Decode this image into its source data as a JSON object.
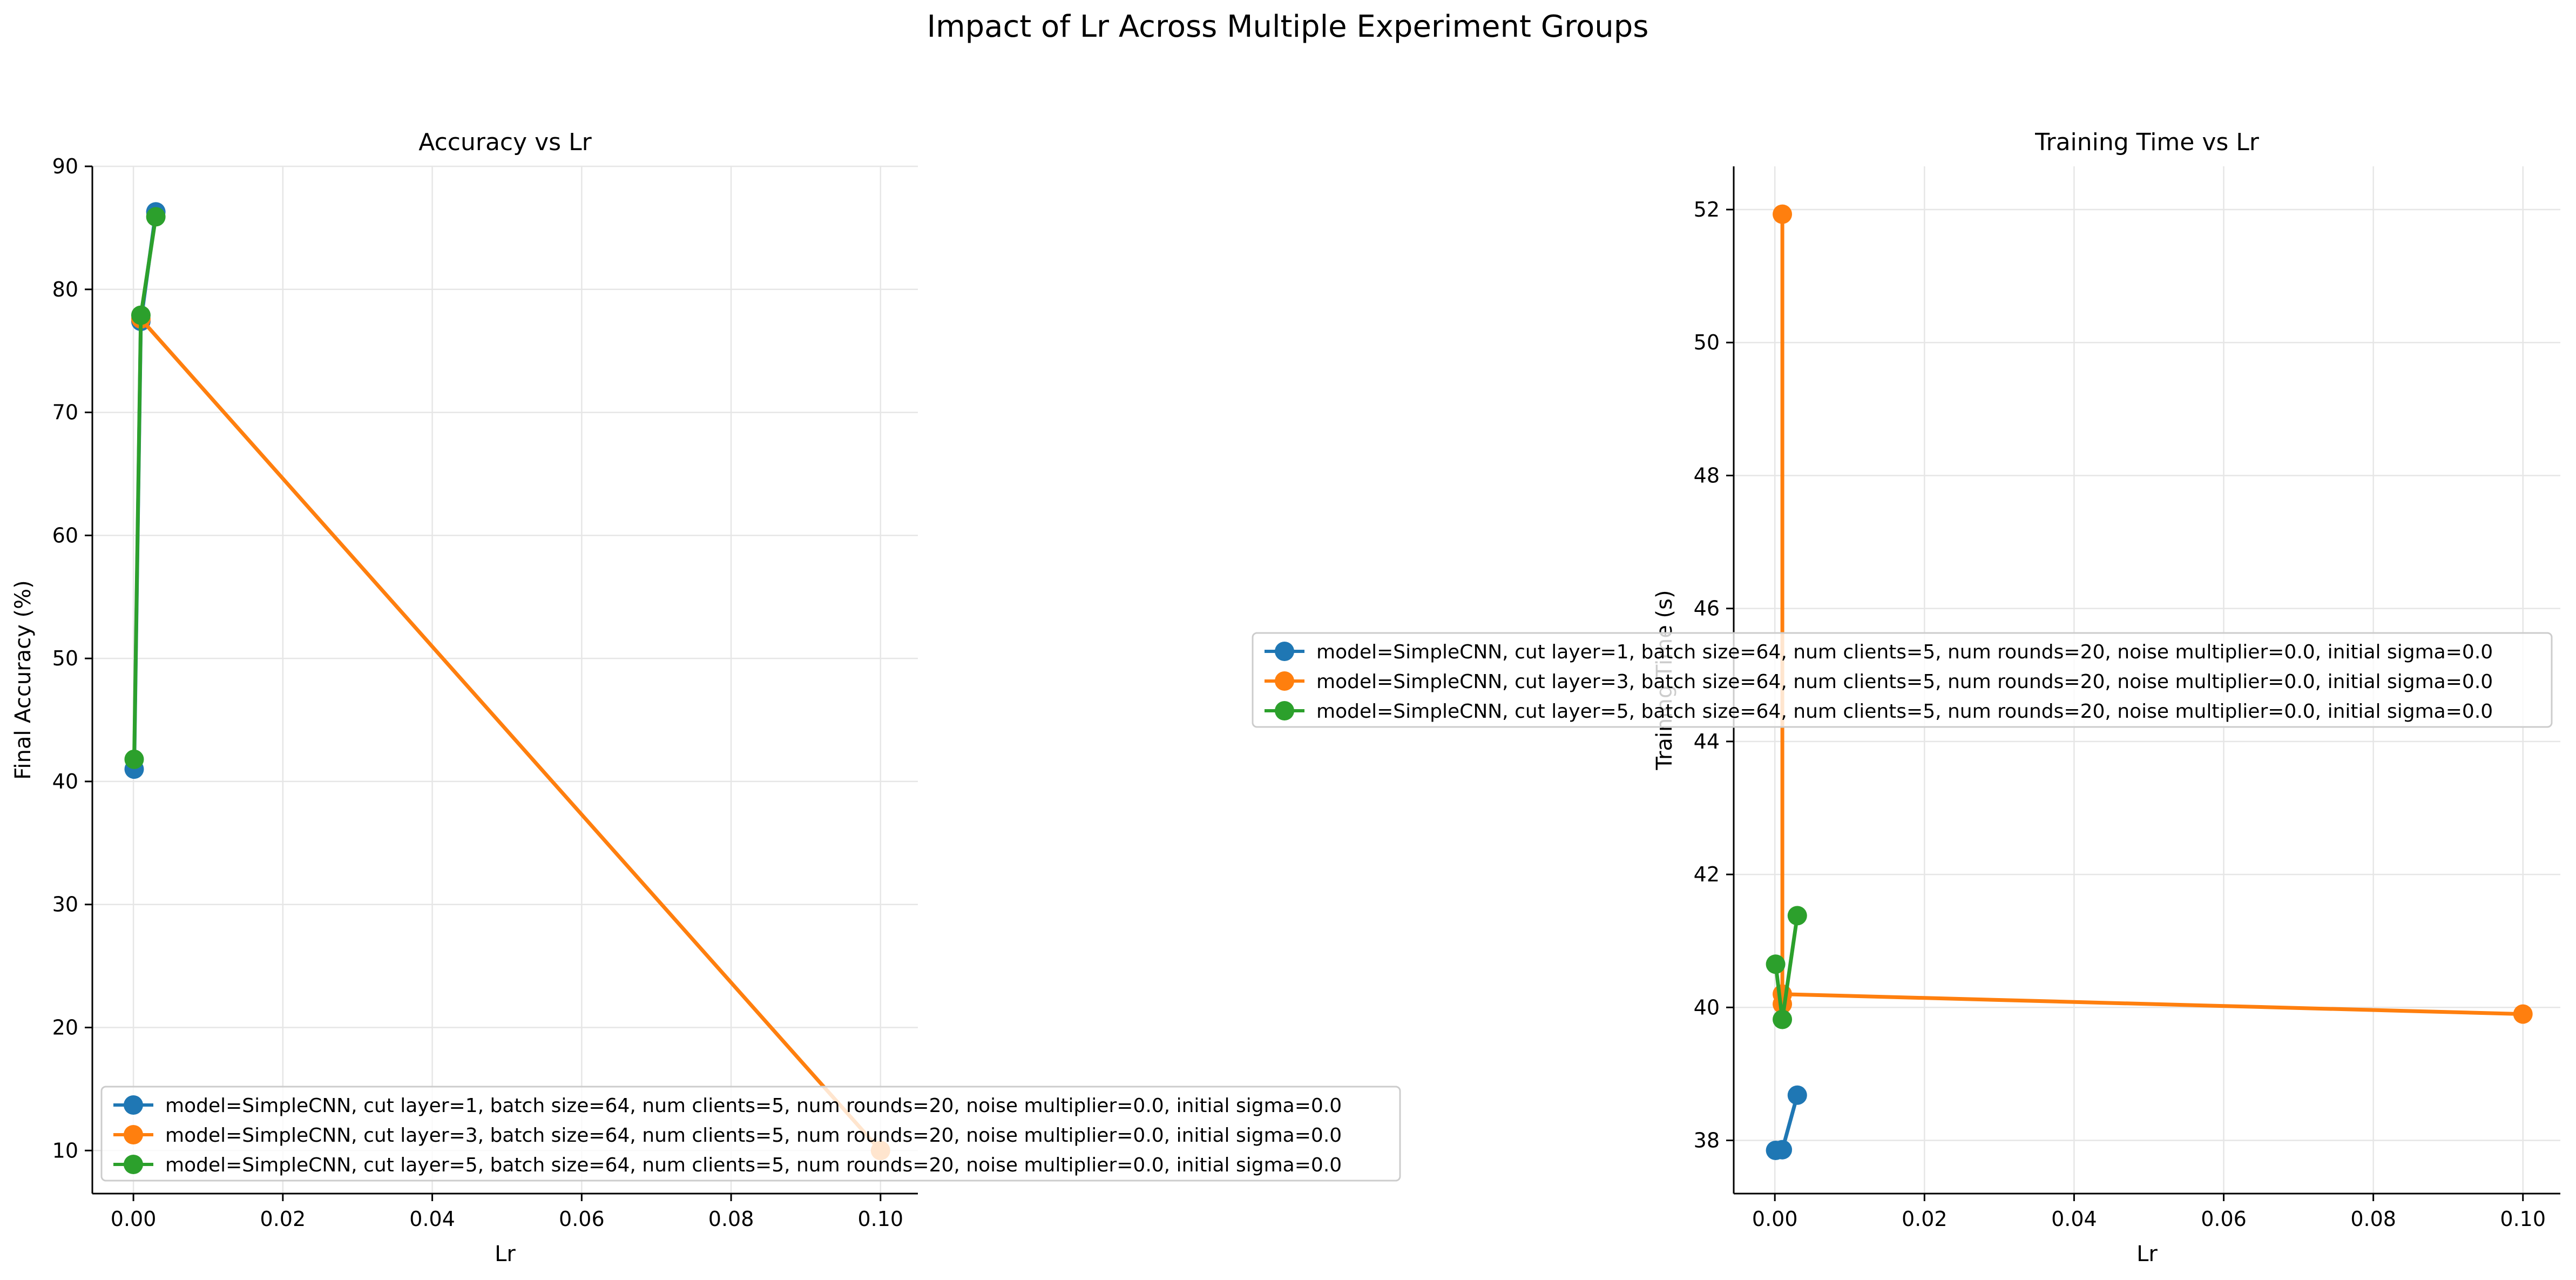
{
  "figure": {
    "suptitle": "Impact of Lr Across Multiple Experiment Groups"
  },
  "colors": {
    "series": [
      "#1f77b4",
      "#ff7f0e",
      "#2ca02c"
    ],
    "grid": "#e6e6e6"
  },
  "legend_entries": [
    "model=SimpleCNN, cut layer=1, batch size=64, num clients=5, num rounds=20, noise multiplier=0.0, initial sigma=0.0",
    "model=SimpleCNN, cut layer=3, batch size=64, num clients=5, num rounds=20, noise multiplier=0.0, initial sigma=0.0",
    "model=SimpleCNN, cut layer=5, batch size=64, num clients=5, num rounds=20, noise multiplier=0.0, initial sigma=0.0"
  ],
  "chart_data": [
    {
      "type": "line",
      "title": "Accuracy vs Lr",
      "xlabel": "Lr",
      "ylabel": "Final Accuracy (%)",
      "xlim": [
        -0.0055,
        0.105
      ],
      "ylim": [
        6.5,
        90
      ],
      "xticks": [
        "0.00",
        "0.02",
        "0.04",
        "0.06",
        "0.08",
        "0.10"
      ],
      "yticks": [
        "10",
        "20",
        "30",
        "40",
        "50",
        "60",
        "70",
        "80",
        "90"
      ],
      "grid": true,
      "legend_position": "lower-left",
      "series": [
        {
          "name": "model=SimpleCNN, cut layer=1, batch size=64, num clients=5, num rounds=20, noise multiplier=0.0, initial sigma=0.0",
          "x": [
            0.0001,
            0.001,
            0.003
          ],
          "y": [
            41.0,
            77.4,
            86.3
          ]
        },
        {
          "name": "model=SimpleCNN, cut layer=3, batch size=64, num clients=5, num rounds=20, noise multiplier=0.0, initial sigma=0.0",
          "x": [
            0.001,
            0.1
          ],
          "y": [
            77.6,
            10.0
          ]
        },
        {
          "name": "model=SimpleCNN, cut layer=5, batch size=64, num clients=5, num rounds=20, noise multiplier=0.0, initial sigma=0.0",
          "x": [
            0.0001,
            0.001,
            0.003
          ],
          "y": [
            41.8,
            77.9,
            85.9
          ]
        }
      ]
    },
    {
      "type": "line",
      "title": "Training Time vs Lr",
      "xlabel": "Lr",
      "ylabel": "Training Time (s)",
      "xlim": [
        -0.0055,
        0.105
      ],
      "ylim": [
        37.2,
        52.65
      ],
      "xticks": [
        "0.00",
        "0.02",
        "0.04",
        "0.06",
        "0.08",
        "0.10"
      ],
      "yticks": [
        "38",
        "40",
        "42",
        "44",
        "46",
        "48",
        "50",
        "52"
      ],
      "grid": true,
      "legend_position": "center",
      "series": [
        {
          "name": "model=SimpleCNN, cut layer=1, batch size=64, num clients=5, num rounds=20, noise multiplier=0.0, initial sigma=0.0",
          "x": [
            0.0001,
            0.001,
            0.003
          ],
          "y": [
            37.85,
            37.86,
            38.68
          ]
        },
        {
          "name": "model=SimpleCNN, cut layer=3, batch size=64, num clients=5, num rounds=20, noise multiplier=0.0, initial sigma=0.0",
          "x": [
            0.001,
            0.001,
            0.001,
            0.1
          ],
          "y": [
            51.93,
            40.05,
            40.2,
            39.9
          ]
        },
        {
          "name": "model=SimpleCNN, cut layer=5, batch size=64, num clients=5, num rounds=20, noise multiplier=0.0, initial sigma=0.0",
          "x": [
            0.0001,
            0.001,
            0.003
          ],
          "y": [
            40.65,
            39.82,
            41.38
          ]
        }
      ]
    }
  ]
}
